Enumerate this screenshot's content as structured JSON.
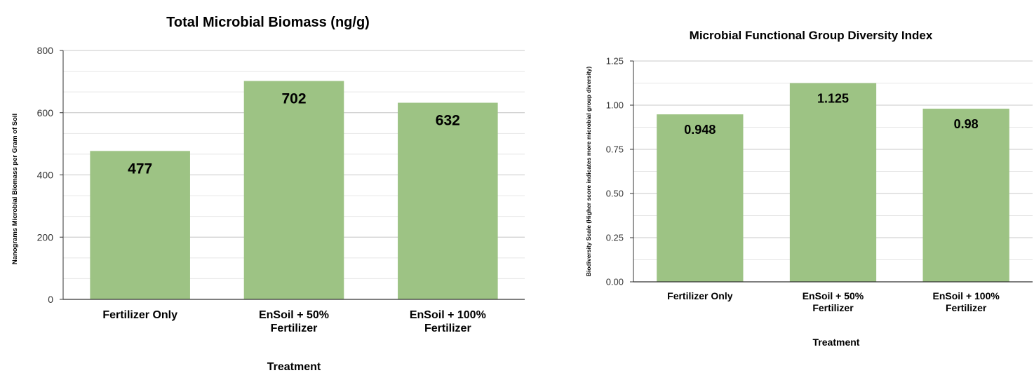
{
  "colors": {
    "bar": "#9dc384",
    "grid_major": "#c8c8c8",
    "grid_minor": "#e6e6e6",
    "axis": "#333333",
    "text": "#000000",
    "tick_text": "#333333"
  },
  "chart_data": [
    {
      "type": "bar",
      "title": "Total Microbial Biomass (ng/g)",
      "xlabel": "Treatment",
      "ylabel": "Nanograms Microbial Biomass  per Gram of Soil",
      "categories": [
        [
          "Fertilizer Only"
        ],
        [
          "EnSoil + 50%",
          "Fertilizer"
        ],
        [
          "EnSoil + 100%",
          "Fertilizer"
        ]
      ],
      "values": [
        477,
        702,
        632
      ],
      "data_labels": [
        "477",
        "702",
        "632"
      ],
      "ylim": [
        0,
        800
      ],
      "yticks": [
        0,
        200,
        400,
        600,
        800
      ],
      "ytick_labels": [
        "0",
        "200",
        "400",
        "600",
        "800"
      ],
      "minor_step": 66.67,
      "grid": true,
      "legend": "none"
    },
    {
      "type": "bar",
      "title": "Microbial Functional Group Diversity Index",
      "xlabel": "Treatment",
      "ylabel": "Biodiversity Scale (Higher score indicates more microbial group diversity)",
      "categories": [
        [
          "Fertilizer Only"
        ],
        [
          "EnSoil + 50%",
          "Fertilizer"
        ],
        [
          "EnSoil + 100%",
          "Fertilizer"
        ]
      ],
      "values": [
        0.948,
        1.125,
        0.98
      ],
      "data_labels": [
        "0.948",
        "1.125",
        "0.98"
      ],
      "ylim": [
        0,
        1.25
      ],
      "yticks": [
        0,
        0.25,
        0.5,
        0.75,
        1.0,
        1.25
      ],
      "ytick_labels": [
        "0.00",
        "0.25",
        "0.50",
        "0.75",
        "1.00",
        "1.25"
      ],
      "minor_step": 0.125,
      "grid": true,
      "legend": "none"
    }
  ]
}
